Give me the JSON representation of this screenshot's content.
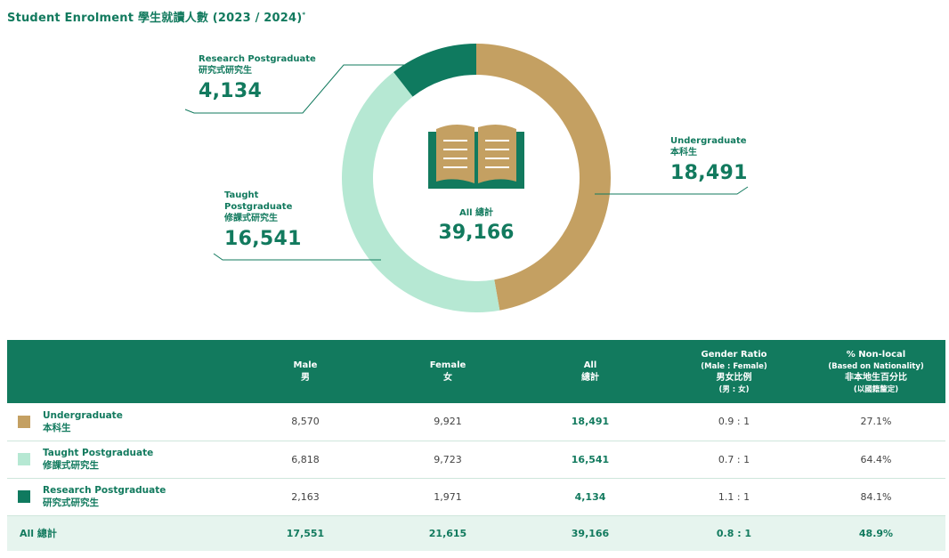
{
  "title": "Student Enrolment 學生就讀人數 (2023 / 2024)",
  "title_mark": "*",
  "colors": {
    "undergraduate": "#c4a062",
    "taught": "#b6e8d3",
    "research": "#0f7a5f",
    "header": "#127a5e",
    "total_row": "#e6f4ee"
  },
  "icon": "open-book-icon",
  "chart_data": {
    "type": "pie",
    "series": [
      {
        "name": "Undergraduate 本科生",
        "value": 18491
      },
      {
        "name": "Taught Postgraduate 修課式研究生",
        "value": 16541
      },
      {
        "name": "Research Postgraduate 研究式研究生",
        "value": 4134
      }
    ],
    "total_label": "All 總計",
    "total_value": "39,166"
  },
  "callouts": {
    "research": {
      "label1": "Research Postgraduate",
      "label2": "研究式研究生",
      "value": "4,134"
    },
    "undergrad": {
      "label1": "Undergraduate",
      "label2": "本科生",
      "value": "18,491"
    },
    "taught": {
      "label1": "Taught",
      "label1b": "Postgraduate",
      "label2": "修課式研究生",
      "value": "16,541"
    }
  },
  "table": {
    "headers": {
      "male": "Male",
      "male_zh": "男",
      "female": "Female",
      "female_zh": "女",
      "all": "All",
      "all_zh": "總計",
      "ratio": "Gender Ratio",
      "ratio_sub": "(Male : Female)",
      "ratio_zh": "男女比例",
      "ratio_zh_sub": "(男 : 女)",
      "nonlocal": "% Non-local",
      "nonlocal_sub": "(Based on Nationality)",
      "nonlocal_zh": "非本地生百分比",
      "nonlocal_zh_sub": "(以國籍釐定)"
    },
    "rows": [
      {
        "en": "Undergraduate",
        "zh": "本科生",
        "male": "8,570",
        "female": "9,921",
        "all": "18,491",
        "ratio": "0.9 : 1",
        "nonlocal": "27.1%"
      },
      {
        "en": "Taught Postgraduate",
        "zh": "修課式研究生",
        "male": "6,818",
        "female": "9,723",
        "all": "16,541",
        "ratio": "0.7 : 1",
        "nonlocal": "64.4%"
      },
      {
        "en": "Research Postgraduate",
        "zh": "研究式研究生",
        "male": "2,163",
        "female": "1,971",
        "all": "4,134",
        "ratio": "1.1 : 1",
        "nonlocal": "84.1%"
      }
    ],
    "total": {
      "label": "All 總計",
      "male": "17,551",
      "female": "21,615",
      "all": "39,166",
      "ratio": "0.8 : 1",
      "nonlocal": "48.9%"
    }
  }
}
